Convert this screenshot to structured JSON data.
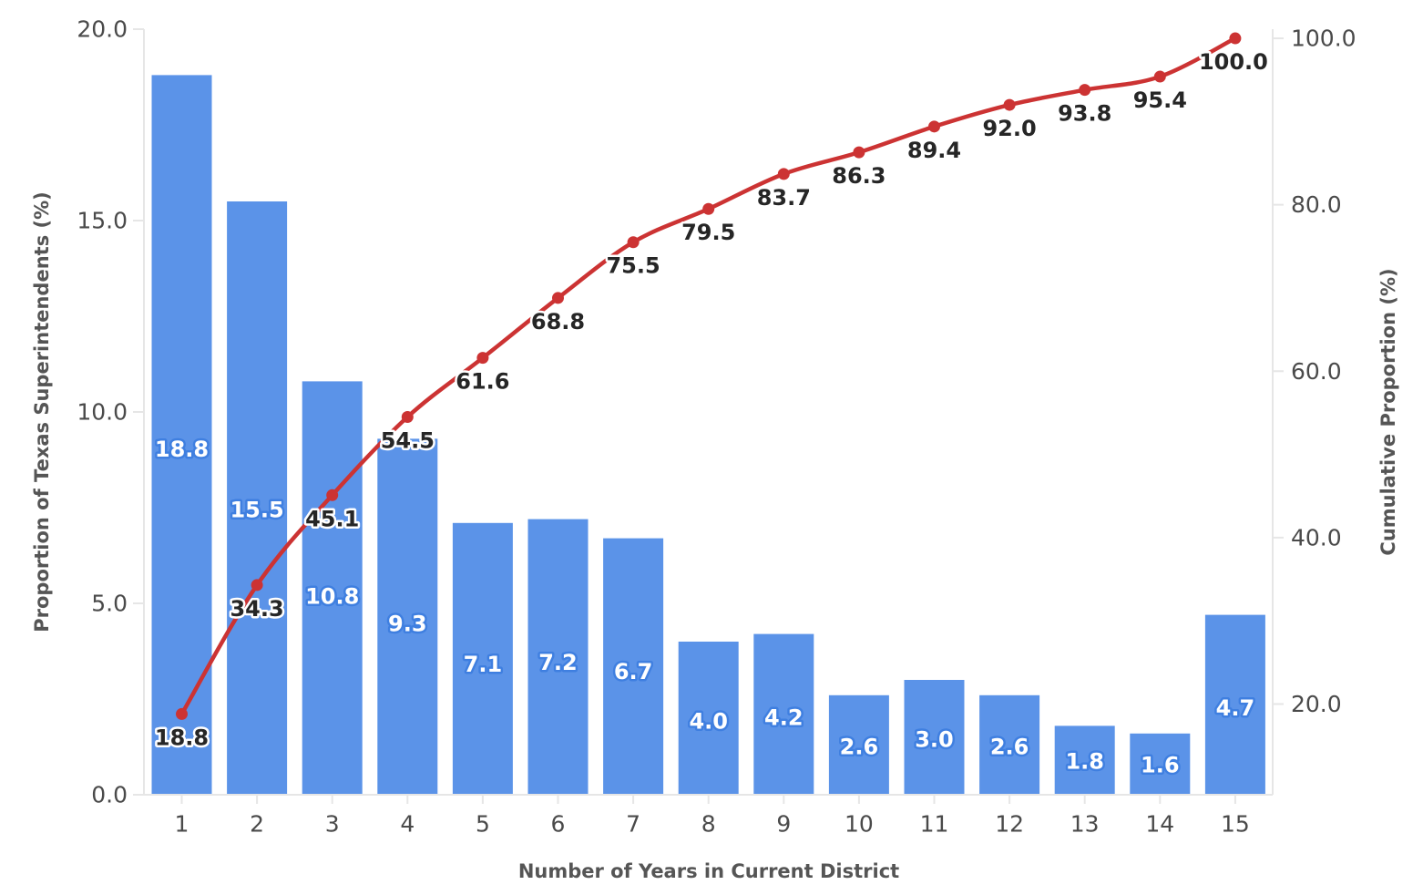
{
  "chart_data": {
    "type": "bar",
    "title": "",
    "xlabel": "Number of Years in Current District",
    "ylabel": "Proportion of Texas Superintendents (%)",
    "y2label": "Cumulative Proportion (%)",
    "categories": [
      "1",
      "2",
      "3",
      "4",
      "5",
      "6",
      "7",
      "8",
      "9",
      "10",
      "11",
      "12",
      "13",
      "14",
      "15"
    ],
    "series": [
      {
        "type": "bar",
        "axis": "left",
        "color": "#5b93e8",
        "values": [
          18.8,
          15.5,
          10.8,
          9.3,
          7.1,
          7.2,
          6.7,
          4.0,
          4.2,
          2.6,
          3.0,
          2.6,
          1.8,
          1.6,
          4.7
        ],
        "labels": [
          "18.8",
          "15.5",
          "10.8",
          "9.3",
          "7.1",
          "7.2",
          "6.7",
          "4.0",
          "4.2",
          "2.6",
          "3.0",
          "2.6",
          "1.8",
          "1.6",
          "4.7"
        ]
      },
      {
        "type": "line",
        "axis": "right",
        "color": "#cc3333",
        "values": [
          18.8,
          34.3,
          45.1,
          54.5,
          61.6,
          68.8,
          75.5,
          79.5,
          83.7,
          86.3,
          89.4,
          92.0,
          93.8,
          95.4,
          100.0
        ],
        "labels": [
          "18.8",
          "34.3",
          "45.1",
          "54.5",
          "61.6",
          "68.8",
          "75.5",
          "79.5",
          "83.7",
          "86.3",
          "89.4",
          "92.0",
          "93.8",
          "95.4",
          "100.0"
        ]
      }
    ],
    "ylim": [
      0,
      20
    ],
    "y_ticks": [
      "0.0",
      "5.0",
      "10.0",
      "15.0",
      "20.0"
    ],
    "y2lim": [
      9.1,
      101.1
    ],
    "y2_ticks": [
      "20.0",
      "40.0",
      "60.0",
      "80.0",
      "100.0"
    ],
    "grid": false,
    "legend": "none"
  }
}
